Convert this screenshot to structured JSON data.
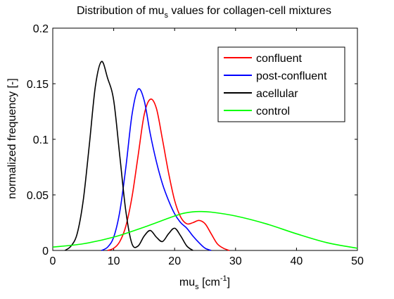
{
  "chart_data": {
    "type": "line",
    "title": {
      "text": "Distribution of mu",
      "sub": "s",
      "suffix": " values for collagen-cell mixtures"
    },
    "xlabel": {
      "text": "mu",
      "sub": "s",
      "suffix": " [cm",
      "sup": "-1",
      "end": "]"
    },
    "ylabel": "normalized frequency [-]",
    "xlim": [
      0,
      50
    ],
    "ylim": [
      0,
      0.2
    ],
    "xticks": [
      0,
      10,
      20,
      30,
      40,
      50
    ],
    "xtick_labels": [
      "0",
      "10",
      "20",
      "30",
      "40",
      "50"
    ],
    "yticks": [
      0,
      0.05,
      0.1,
      0.15,
      0.2
    ],
    "ytick_labels": [
      "0",
      "0.05",
      "0.1",
      "0.15",
      "0.2"
    ],
    "grid": false,
    "legend_position": "top-right",
    "series": [
      {
        "name": "confluent",
        "color": "#ff0000",
        "x": [
          9,
          10,
          11,
          12,
          13,
          14,
          15,
          16,
          17,
          18,
          19,
          20,
          21,
          22,
          23,
          24,
          25,
          26,
          27,
          28,
          29
        ],
        "y": [
          0.0,
          0.002,
          0.008,
          0.022,
          0.048,
          0.085,
          0.122,
          0.136,
          0.128,
          0.1,
          0.07,
          0.045,
          0.03,
          0.024,
          0.025,
          0.027,
          0.024,
          0.015,
          0.006,
          0.002,
          0.0
        ]
      },
      {
        "name": "post-confluent",
        "color": "#0000ff",
        "x": [
          8,
          9,
          10,
          11,
          12,
          13,
          14,
          15,
          16,
          17,
          18,
          19,
          20,
          21,
          22,
          23,
          24,
          25,
          26
        ],
        "y": [
          0.0,
          0.003,
          0.012,
          0.035,
          0.075,
          0.122,
          0.145,
          0.135,
          0.105,
          0.08,
          0.06,
          0.045,
          0.033,
          0.025,
          0.02,
          0.013,
          0.007,
          0.002,
          0.0
        ]
      },
      {
        "name": "acellular",
        "color": "#000000",
        "x": [
          2,
          3,
          4,
          5,
          6,
          7,
          8,
          9,
          10,
          11,
          12,
          13,
          14,
          15,
          16,
          17,
          18,
          19,
          20,
          21,
          22,
          23
        ],
        "y": [
          0.0,
          0.004,
          0.015,
          0.045,
          0.095,
          0.148,
          0.17,
          0.155,
          0.135,
          0.085,
          0.035,
          0.006,
          0.004,
          0.013,
          0.018,
          0.012,
          0.008,
          0.015,
          0.02,
          0.013,
          0.004,
          0.0
        ]
      },
      {
        "name": "control",
        "color": "#00ff00",
        "x": [
          0,
          5,
          10,
          15,
          20,
          22,
          24,
          26,
          30,
          35,
          40,
          45,
          50
        ],
        "y": [
          0.003,
          0.006,
          0.012,
          0.021,
          0.031,
          0.034,
          0.035,
          0.0345,
          0.031,
          0.024,
          0.015,
          0.007,
          0.002
        ]
      }
    ]
  }
}
